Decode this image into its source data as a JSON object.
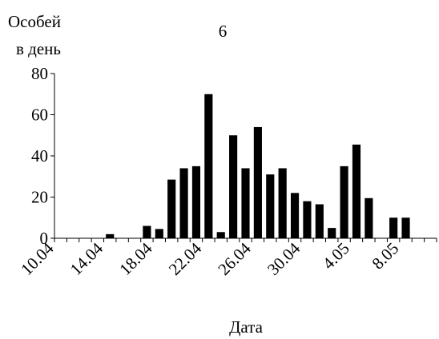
{
  "chart_data": {
    "type": "bar",
    "title": "6",
    "ylabel": [
      "Особей",
      "в день"
    ],
    "xlabel": "Дата",
    "categories": [
      "10.04",
      null,
      null,
      null,
      "14.04",
      null,
      null,
      null,
      "18.04",
      null,
      null,
      null,
      "22.04",
      null,
      null,
      null,
      "26.04",
      null,
      null,
      null,
      "30.04",
      null,
      null,
      null,
      "4.05",
      null,
      null,
      null,
      "8.05",
      null,
      null
    ],
    "values": [
      0,
      0,
      0,
      0,
      2,
      0,
      0,
      6,
      4.5,
      28.5,
      34,
      35,
      70,
      3,
      50,
      34,
      54,
      31,
      34,
      22,
      18,
      16.5,
      5,
      35,
      45.5,
      19.5,
      0,
      10,
      10,
      0,
      0
    ],
    "color": "#000000",
    "ylim": [
      0,
      80
    ],
    "yticks": [
      0,
      20,
      40,
      60,
      80
    ],
    "grid": false
  }
}
